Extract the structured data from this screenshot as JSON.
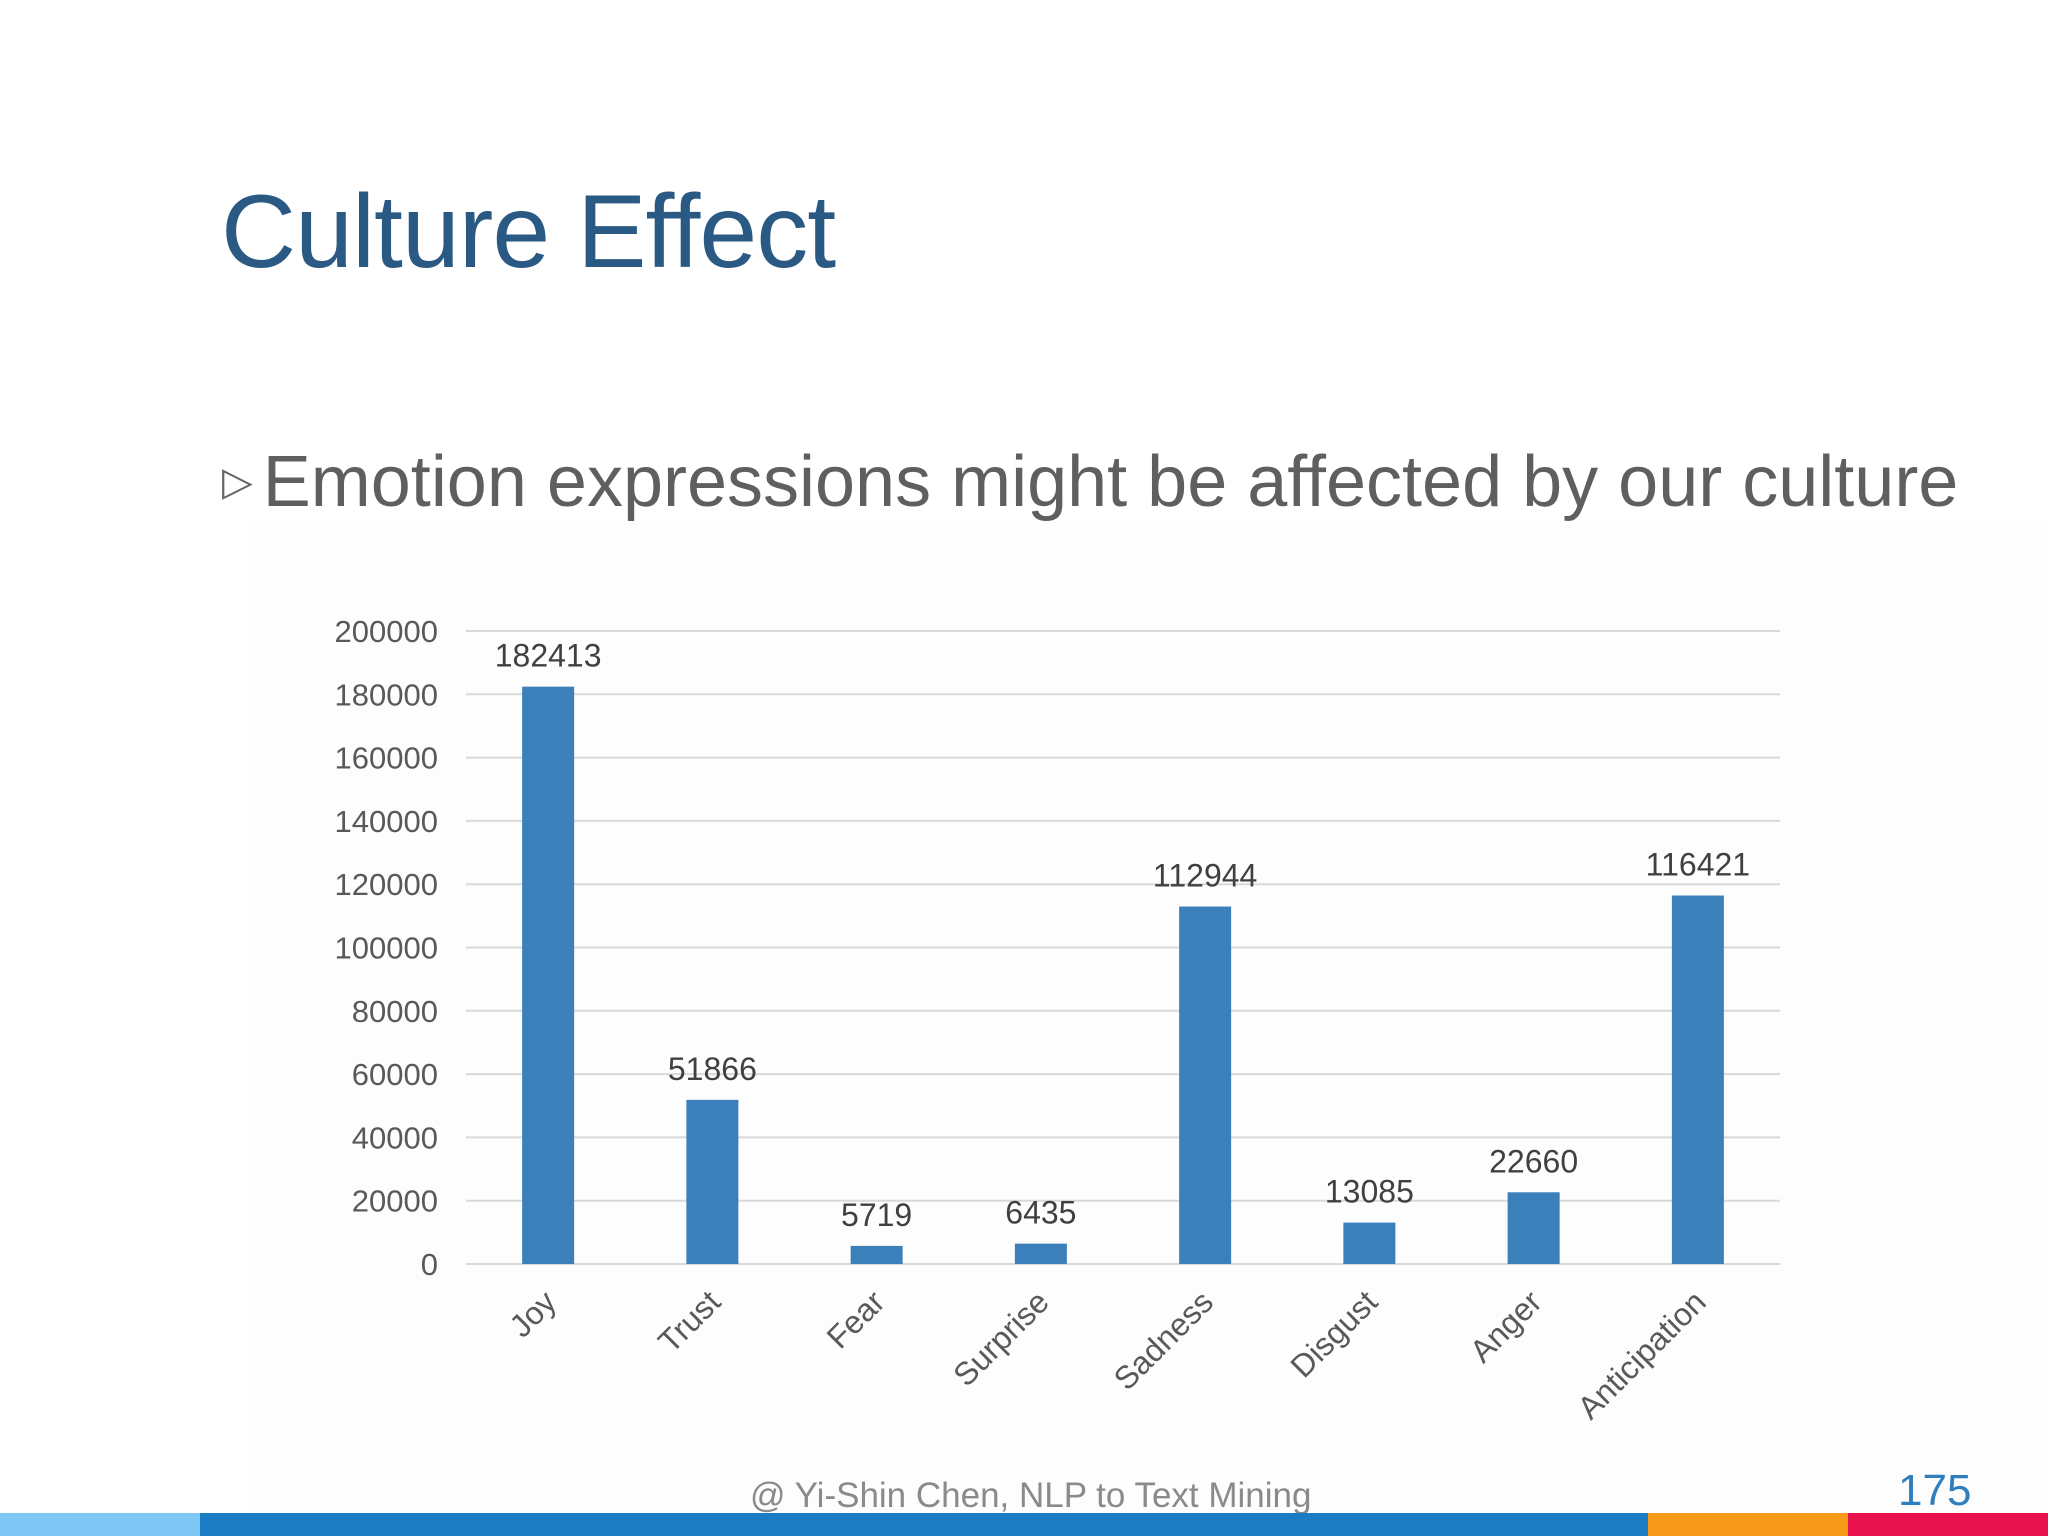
{
  "slide": {
    "title": "Culture Effect",
    "bullet_marker": "▷",
    "bullet_text": "Emotion expressions might be affected by our culture",
    "footer": "@ Yi-Shin Chen, NLP to Text Mining",
    "page_number": "175"
  },
  "colors": {
    "title": "#2a5a84",
    "bar": "#3b80bb",
    "gridline": "#d9d9d9",
    "footer_bar": [
      "#7fc8f5",
      "#1b7cc3",
      "#f79a1a",
      "#e8124f"
    ]
  },
  "chart_data": {
    "type": "bar",
    "title": "",
    "xlabel": "",
    "ylabel": "",
    "categories": [
      "Joy",
      "Trust",
      "Fear",
      "Surprise",
      "Sadness",
      "Disgust",
      "Anger",
      "Anticipation"
    ],
    "values": [
      182413,
      51866,
      5719,
      6435,
      112944,
      13085,
      22660,
      116421
    ],
    "data_labels": [
      "182413",
      "51866",
      "5719",
      "6435",
      "112944",
      "13085",
      "22660",
      "116421"
    ],
    "yticks": [
      "0",
      "20000",
      "40000",
      "60000",
      "80000",
      "100000",
      "120000",
      "140000",
      "160000",
      "180000",
      "200000"
    ],
    "ylim": [
      0,
      200000
    ],
    "grid": true,
    "legend": "none"
  }
}
